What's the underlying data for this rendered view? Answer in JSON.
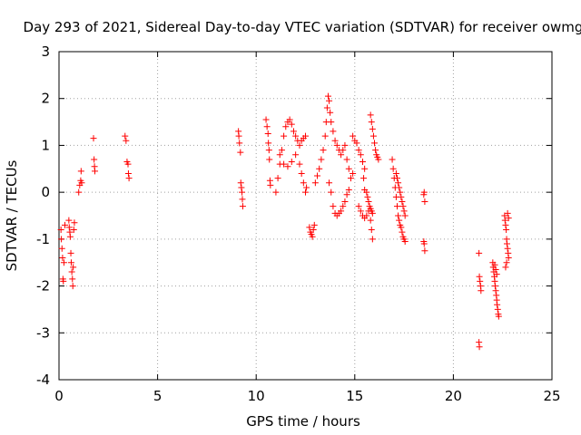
{
  "chart_data": {
    "type": "scatter",
    "title": "Day 293 of 2021, Sidereal Day-to-day VTEC variation (SDTVAR) for receiver owmg",
    "xlabel": "GPS time / hours",
    "ylabel": "SDTVAR / TECUs",
    "xlim": [
      0,
      25
    ],
    "ylim": [
      -4,
      3
    ],
    "x_ticks": [
      0,
      5,
      10,
      15,
      20,
      25
    ],
    "x_tick_labels": [
      "0",
      "5",
      "10",
      "15",
      "20",
      "25"
    ],
    "y_ticks": [
      -4,
      -3,
      -2,
      -1,
      0,
      1,
      2,
      3
    ],
    "y_tick_labels": [
      "-4",
      "-3",
      "-2",
      "-1",
      "0",
      "1",
      "2",
      "3"
    ],
    "grid": true,
    "marker": "+",
    "marker_color": "#ff0000",
    "series": [
      {
        "name": "SDTVAR",
        "points": [
          [
            0.1,
            -0.8
          ],
          [
            0.12,
            -1.0
          ],
          [
            0.15,
            -1.2
          ],
          [
            0.18,
            -1.4
          ],
          [
            0.2,
            -1.85
          ],
          [
            0.22,
            -1.9
          ],
          [
            0.25,
            -1.5
          ],
          [
            0.3,
            -0.7
          ],
          [
            0.5,
            -0.6
          ],
          [
            0.52,
            -0.75
          ],
          [
            0.55,
            -0.85
          ],
          [
            0.57,
            -0.95
          ],
          [
            0.6,
            -1.3
          ],
          [
            0.62,
            -1.5
          ],
          [
            0.65,
            -1.7
          ],
          [
            0.68,
            -1.85
          ],
          [
            0.7,
            -2.0
          ],
          [
            0.72,
            -1.6
          ],
          [
            0.75,
            -0.8
          ],
          [
            0.78,
            -0.65
          ],
          [
            1.0,
            0.0
          ],
          [
            1.05,
            0.15
          ],
          [
            1.1,
            0.25
          ],
          [
            1.12,
            0.45
          ],
          [
            1.15,
            0.2
          ],
          [
            1.75,
            1.15
          ],
          [
            1.78,
            0.7
          ],
          [
            1.8,
            0.55
          ],
          [
            1.82,
            0.45
          ],
          [
            3.35,
            1.2
          ],
          [
            3.4,
            1.1
          ],
          [
            3.45,
            0.65
          ],
          [
            3.5,
            0.6
          ],
          [
            3.52,
            0.4
          ],
          [
            3.55,
            0.3
          ],
          [
            9.1,
            1.3
          ],
          [
            9.12,
            1.2
          ],
          [
            9.15,
            1.05
          ],
          [
            9.2,
            0.85
          ],
          [
            9.22,
            0.2
          ],
          [
            9.25,
            0.1
          ],
          [
            9.28,
            0.0
          ],
          [
            9.3,
            -0.15
          ],
          [
            9.32,
            -0.3
          ],
          [
            10.5,
            1.55
          ],
          [
            10.55,
            1.4
          ],
          [
            10.6,
            1.25
          ],
          [
            10.62,
            1.05
          ],
          [
            10.65,
            0.9
          ],
          [
            10.67,
            0.7
          ],
          [
            10.7,
            0.25
          ],
          [
            10.72,
            0.15
          ],
          [
            11.0,
            0.0
          ],
          [
            11.1,
            0.3
          ],
          [
            11.2,
            0.6
          ],
          [
            11.3,
            0.9
          ],
          [
            11.4,
            1.2
          ],
          [
            11.5,
            1.4
          ],
          [
            11.6,
            1.5
          ],
          [
            11.7,
            1.55
          ],
          [
            11.8,
            1.45
          ],
          [
            11.9,
            1.3
          ],
          [
            12.0,
            1.2
          ],
          [
            12.1,
            1.1
          ],
          [
            12.2,
            1.0
          ],
          [
            12.3,
            1.1
          ],
          [
            12.4,
            1.15
          ],
          [
            12.5,
            1.2
          ],
          [
            11.2,
            0.8
          ],
          [
            11.4,
            0.6
          ],
          [
            11.6,
            0.55
          ],
          [
            11.8,
            0.65
          ],
          [
            12.0,
            0.8
          ],
          [
            12.2,
            0.6
          ],
          [
            12.3,
            0.4
          ],
          [
            12.4,
            0.2
          ],
          [
            12.5,
            0.0
          ],
          [
            12.55,
            0.1
          ],
          [
            12.7,
            -0.75
          ],
          [
            12.75,
            -0.85
          ],
          [
            12.8,
            -0.9
          ],
          [
            12.85,
            -0.95
          ],
          [
            12.9,
            -0.8
          ],
          [
            12.95,
            -0.7
          ],
          [
            13.0,
            0.2
          ],
          [
            13.1,
            0.35
          ],
          [
            13.2,
            0.5
          ],
          [
            13.3,
            0.7
          ],
          [
            13.4,
            0.9
          ],
          [
            13.5,
            1.2
          ],
          [
            13.55,
            1.5
          ],
          [
            13.6,
            1.8
          ],
          [
            13.65,
            2.05
          ],
          [
            13.7,
            1.95
          ],
          [
            13.75,
            1.7
          ],
          [
            13.8,
            1.5
          ],
          [
            13.9,
            1.3
          ],
          [
            14.0,
            1.1
          ],
          [
            14.1,
            1.0
          ],
          [
            14.2,
            0.9
          ],
          [
            14.3,
            0.8
          ],
          [
            14.4,
            0.9
          ],
          [
            14.5,
            1.0
          ],
          [
            14.6,
            0.7
          ],
          [
            14.7,
            0.5
          ],
          [
            14.8,
            0.3
          ],
          [
            14.9,
            0.4
          ],
          [
            13.7,
            0.2
          ],
          [
            13.8,
            0.0
          ],
          [
            13.9,
            -0.3
          ],
          [
            14.0,
            -0.45
          ],
          [
            14.1,
            -0.5
          ],
          [
            14.2,
            -0.45
          ],
          [
            14.3,
            -0.4
          ],
          [
            14.4,
            -0.3
          ],
          [
            14.5,
            -0.2
          ],
          [
            14.6,
            -0.05
          ],
          [
            14.7,
            0.05
          ],
          [
            14.9,
            1.2
          ],
          [
            15.0,
            1.1
          ],
          [
            15.1,
            1.05
          ],
          [
            15.2,
            0.9
          ],
          [
            15.3,
            0.8
          ],
          [
            15.4,
            0.65
          ],
          [
            15.5,
            0.5
          ],
          [
            15.45,
            0.3
          ],
          [
            15.2,
            -0.3
          ],
          [
            15.3,
            -0.4
          ],
          [
            15.4,
            -0.5
          ],
          [
            15.5,
            -0.55
          ],
          [
            15.6,
            -0.5
          ],
          [
            15.7,
            -0.4
          ],
          [
            15.8,
            -0.6
          ],
          [
            15.85,
            -0.8
          ],
          [
            15.9,
            -1.0
          ],
          [
            15.5,
            0.05
          ],
          [
            15.6,
            0.0
          ],
          [
            15.65,
            -0.1
          ],
          [
            15.7,
            -0.2
          ],
          [
            15.75,
            -0.3
          ],
          [
            15.8,
            -0.35
          ],
          [
            15.85,
            -0.4
          ],
          [
            15.9,
            -0.45
          ],
          [
            15.8,
            1.65
          ],
          [
            15.85,
            1.5
          ],
          [
            15.9,
            1.35
          ],
          [
            15.95,
            1.2
          ],
          [
            16.0,
            1.05
          ],
          [
            16.05,
            0.9
          ],
          [
            16.1,
            0.8
          ],
          [
            16.15,
            0.75
          ],
          [
            16.2,
            0.7
          ],
          [
            16.9,
            0.7
          ],
          [
            16.95,
            0.5
          ],
          [
            17.0,
            0.3
          ],
          [
            17.05,
            0.1
          ],
          [
            17.1,
            -0.1
          ],
          [
            17.15,
            -0.3
          ],
          [
            17.2,
            -0.5
          ],
          [
            17.25,
            -0.6
          ],
          [
            17.3,
            -0.7
          ],
          [
            17.35,
            -0.75
          ],
          [
            17.4,
            -0.85
          ],
          [
            17.45,
            -0.95
          ],
          [
            17.5,
            -1.0
          ],
          [
            17.55,
            -1.05
          ],
          [
            17.1,
            0.4
          ],
          [
            17.15,
            0.3
          ],
          [
            17.2,
            0.2
          ],
          [
            17.25,
            0.1
          ],
          [
            17.3,
            0.0
          ],
          [
            17.35,
            -0.1
          ],
          [
            17.4,
            -0.2
          ],
          [
            17.45,
            -0.3
          ],
          [
            17.5,
            -0.4
          ],
          [
            17.55,
            -0.5
          ],
          [
            18.5,
            -0.05
          ],
          [
            18.52,
            0.0
          ],
          [
            18.55,
            -0.2
          ],
          [
            18.5,
            -1.05
          ],
          [
            18.52,
            -1.1
          ],
          [
            18.55,
            -1.25
          ],
          [
            21.3,
            -1.3
          ],
          [
            21.32,
            -1.8
          ],
          [
            21.35,
            -1.9
          ],
          [
            21.38,
            -2.0
          ],
          [
            21.4,
            -2.1
          ],
          [
            21.3,
            -3.2
          ],
          [
            21.32,
            -3.3
          ],
          [
            22.0,
            -1.5
          ],
          [
            22.02,
            -1.6
          ],
          [
            22.05,
            -1.7
          ],
          [
            22.08,
            -1.8
          ],
          [
            22.1,
            -1.9
          ],
          [
            22.12,
            -2.0
          ],
          [
            22.15,
            -2.1
          ],
          [
            22.18,
            -2.2
          ],
          [
            22.2,
            -2.3
          ],
          [
            22.22,
            -2.4
          ],
          [
            22.25,
            -2.5
          ],
          [
            22.28,
            -2.6
          ],
          [
            22.3,
            -2.65
          ],
          [
            22.1,
            -1.55
          ],
          [
            22.15,
            -1.65
          ],
          [
            22.2,
            -1.75
          ],
          [
            22.6,
            -0.5
          ],
          [
            22.62,
            -0.6
          ],
          [
            22.65,
            -0.7
          ],
          [
            22.68,
            -0.8
          ],
          [
            22.7,
            -1.0
          ],
          [
            22.72,
            -1.1
          ],
          [
            22.75,
            -1.2
          ],
          [
            22.78,
            -1.3
          ],
          [
            22.8,
            -1.4
          ],
          [
            22.75,
            -0.45
          ],
          [
            22.8,
            -0.55
          ],
          [
            22.7,
            -1.5
          ],
          [
            22.65,
            -1.6
          ]
        ]
      }
    ]
  }
}
